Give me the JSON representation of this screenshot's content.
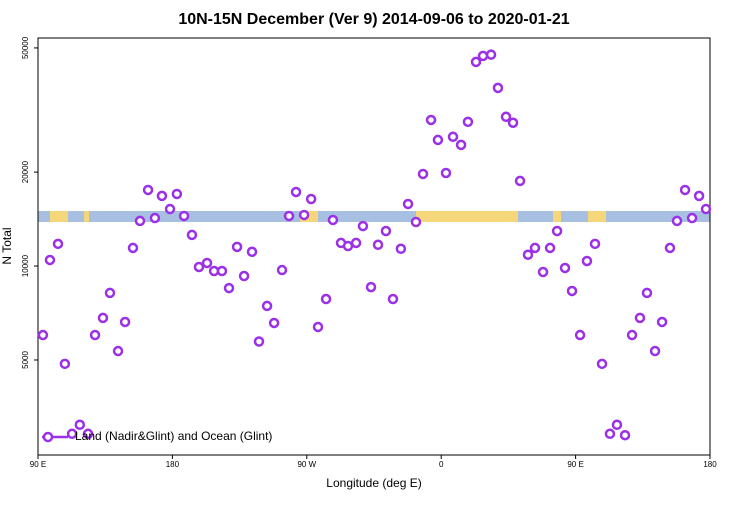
{
  "chart_data": {
    "type": "scatter",
    "title": "10N-15N December (Ver 9)   2014-09-06 to 2020-01-21",
    "x_label": "Longitude (deg E)",
    "y_label": "N Total",
    "xlim": [
      90,
      540
    ],
    "xticks": [
      {
        "value": 90,
        "label": "90 E"
      },
      180,
      {
        "value": 270,
        "label": "90 W"
      },
      {
        "value": 360,
        "label": "0"
      },
      {
        "value": 450,
        "label": "90 E"
      },
      {
        "value": 540,
        "label": "180"
      }
    ],
    "ylim": [
      2480,
      53800
    ],
    "yticks": [
      5000,
      10000,
      20000,
      50000
    ],
    "y_log": true,
    "grid": false,
    "legend": "bottom-left",
    "series": [
      {
        "name": "Land (Nadir&Glint) and Ocean (Glint)",
        "color": "#9b30e8",
        "x": [
          93.3,
          98,
          103.4,
          108,
          112.8,
          118,
          123.5,
          128.2,
          133.5,
          138.2,
          143.6,
          148.3,
          153.6,
          158.3,
          163.7,
          168.3,
          173,
          178.4,
          183,
          187.8,
          193.1,
          197.8,
          203.2,
          207.9,
          213.2,
          217.9,
          223.3,
          228,
          233.3,
          238,
          243.4,
          248.1,
          253.4,
          258.1,
          262.8,
          268.2,
          272.9,
          277.5,
          282.9,
          287.5,
          292.9,
          297.6,
          303,
          307.6,
          313,
          317.7,
          323,
          327.7,
          333,
          337.8,
          343.1,
          347.8,
          353.2,
          357.8,
          363.2,
          367.9,
          373.3,
          377.9,
          383.3,
          388,
          393.4,
          398,
          403.4,
          408.1,
          412.8,
          418.1,
          422.8,
          428.2,
          432.9,
          437.6,
          442.9,
          447.6,
          453,
          457.6,
          463,
          467.7,
          473,
          477.7,
          483.1,
          487.8,
          493.1,
          497.8,
          503.2,
          507.9,
          513.2,
          517.9,
          523.3,
          528,
          532.7,
          537.3
        ],
        "values": [
          6010,
          10460,
          11780,
          4860,
          2900,
          3100,
          2900,
          6010,
          6820,
          8200,
          5340,
          6620,
          11430,
          13950,
          17530,
          14250,
          16780,
          15230,
          17020,
          14470,
          12580,
          9930,
          10230,
          9640,
          9640,
          8500,
          11520,
          9290,
          11110,
          5730,
          7450,
          6570,
          9710,
          14470,
          17270,
          14580,
          16400,
          6380,
          7840,
          14050,
          11860,
          11590,
          11860,
          13430,
          8560,
          11700,
          12950,
          7840,
          11360,
          15810,
          13840,
          19730,
          29390,
          25360,
          19870,
          25950,
          24450,
          28980,
          45090,
          47140,
          47580,
          37230,
          30080,
          28790,
          18740,
          10870,
          11430,
          9570,
          11430,
          12950,
          9860,
          8320,
          6010,
          10380,
          11780,
          4860,
          2900,
          3100,
          2870,
          6010,
          6820,
          8200,
          5340,
          6620,
          11430,
          13950,
          17530,
          14250,
          16780,
          15230
        ]
      }
    ]
  }
}
